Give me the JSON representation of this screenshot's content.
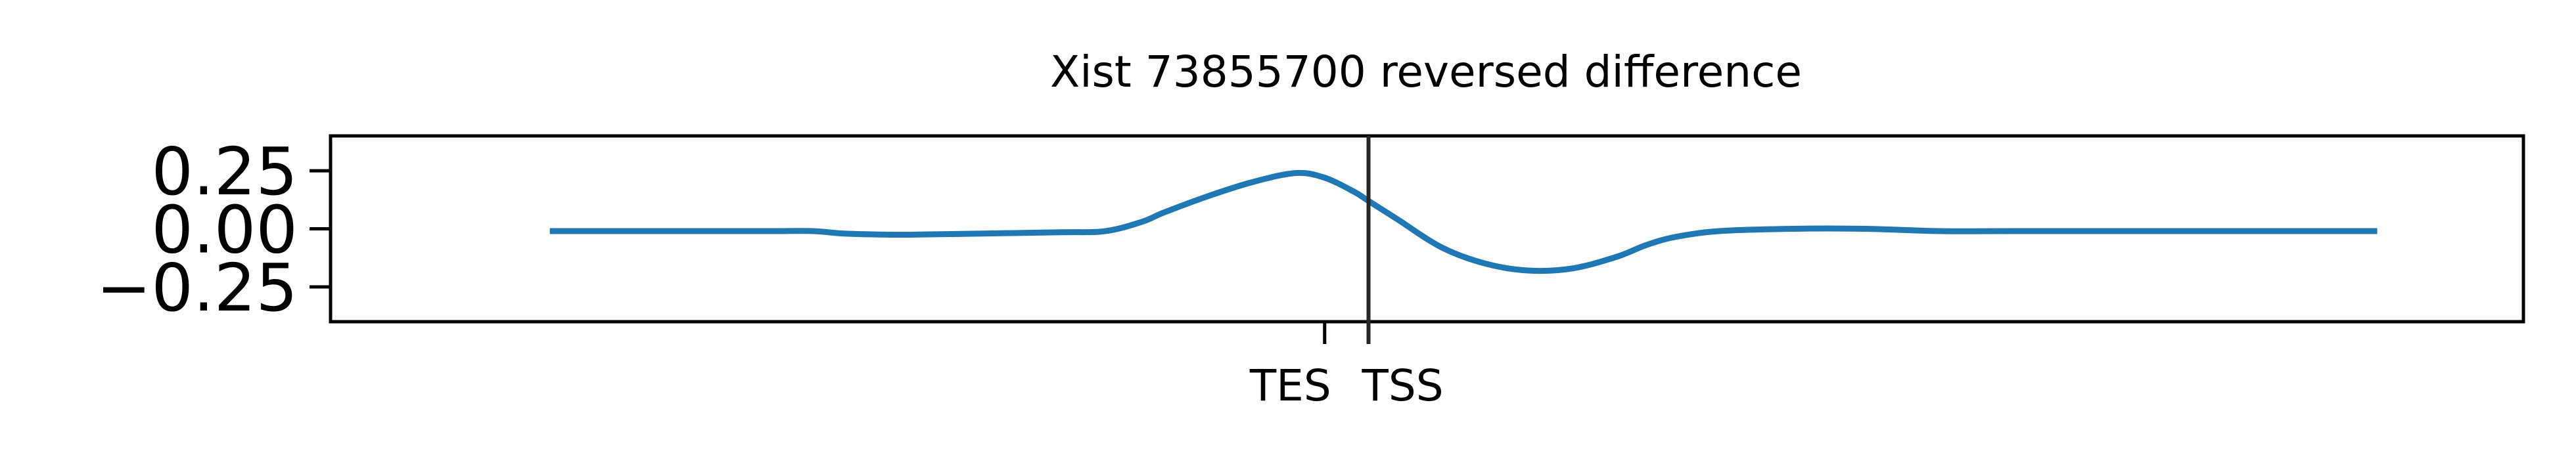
{
  "chart_data": {
    "type": "line",
    "title": "Xist 73855700 reversed difference",
    "xlabel": "",
    "ylabel": "",
    "xlim": [
      -0.5,
      1.0
    ],
    "ylim": [
      -0.4,
      0.4
    ],
    "yticks": [
      {
        "value": 0.25,
        "label": "0.25"
      },
      {
        "value": 0.0,
        "label": "0.00"
      },
      {
        "value": -0.25,
        "label": "−0.25"
      }
    ],
    "xticks": [
      {
        "value": 0.18,
        "label": "TES"
      },
      {
        "value": 0.21,
        "label": "TSS"
      }
    ],
    "vline_x": 0.21,
    "grid": false,
    "series": [
      {
        "color": "#1f77b4",
        "x": [
          -0.35,
          -0.3,
          -0.25,
          -0.2,
          -0.17,
          -0.15,
          -0.12,
          -0.1,
          -0.05,
          0.0,
          0.03,
          0.055,
          0.07,
          0.1,
          0.13,
          0.16,
          0.18,
          0.2,
          0.21,
          0.23,
          0.26,
          0.29,
          0.32,
          0.35,
          0.38,
          0.4,
          0.42,
          0.45,
          0.5,
          0.55,
          0.6,
          0.65,
          0.7,
          0.8,
          0.9
        ],
        "y": [
          -0.01,
          -0.01,
          -0.01,
          -0.01,
          -0.01,
          -0.02,
          -0.025,
          -0.025,
          -0.02,
          -0.015,
          -0.01,
          0.03,
          0.07,
          0.14,
          0.2,
          0.24,
          0.22,
          0.16,
          0.12,
          0.04,
          -0.08,
          -0.15,
          -0.18,
          -0.17,
          -0.12,
          -0.07,
          -0.035,
          -0.01,
          0.0,
          0.0,
          -0.01,
          -0.01,
          -0.01,
          -0.01,
          -0.01
        ]
      }
    ]
  }
}
